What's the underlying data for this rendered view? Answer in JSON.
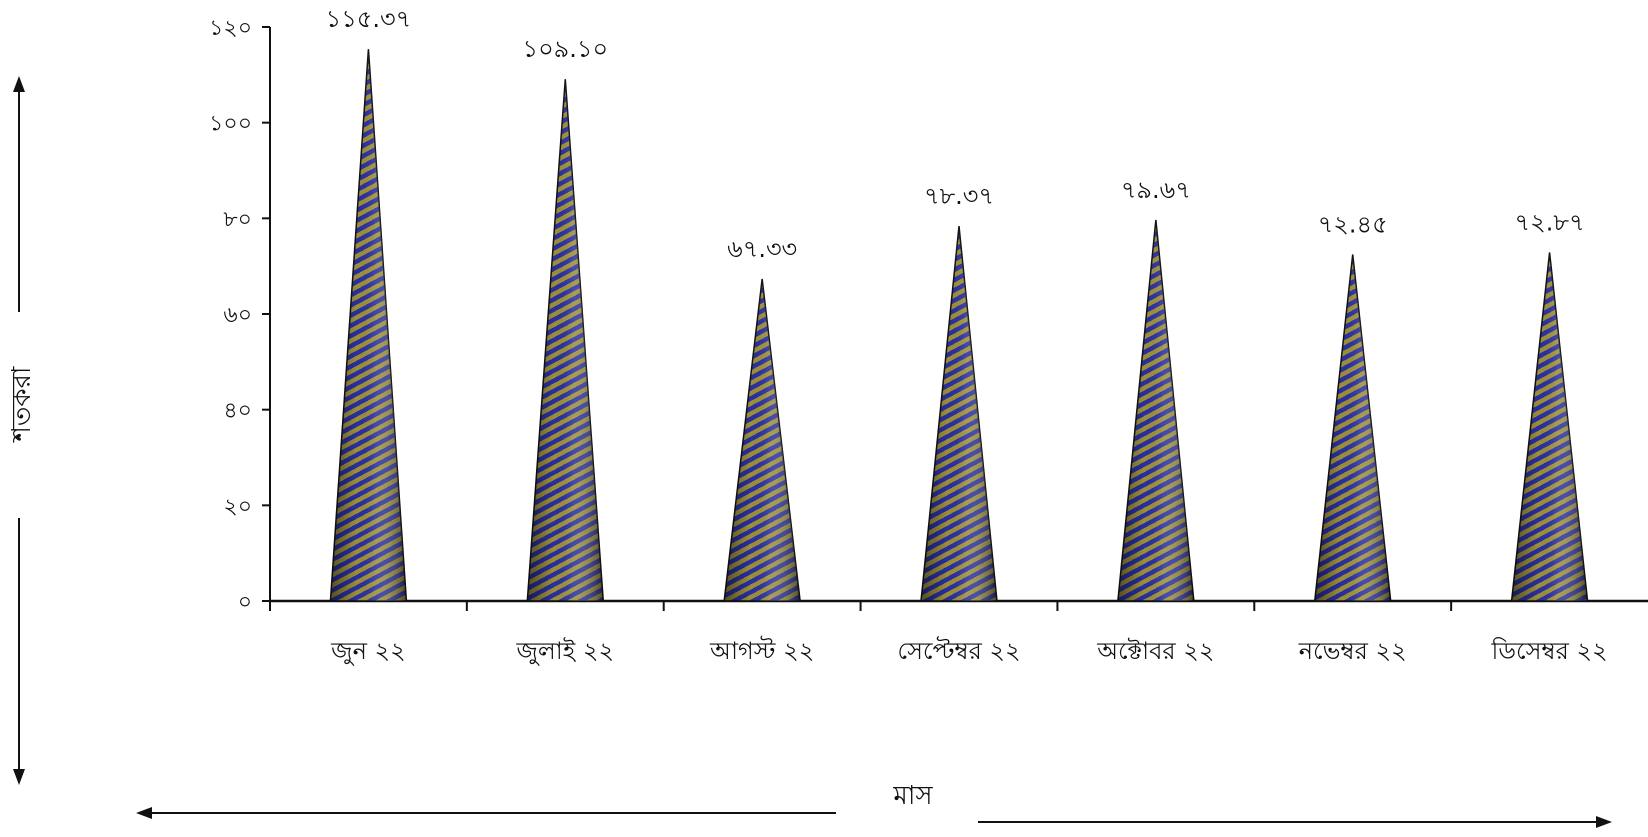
{
  "chart_data": {
    "type": "bar",
    "bar_shape": "cone",
    "title": "",
    "xlabel": "মাস",
    "ylabel": "শতকরা",
    "categories": [
      "জুন ২২",
      "জুলাই ২২",
      "আগস্ট ২২",
      "সেপ্টেম্বর ২২",
      "অক্টোবর ২২",
      "নভেম্বর ২২",
      "ডিসেম্বর ২২"
    ],
    "values": [
      115.37,
      109.1,
      67.33,
      78.37,
      79.67,
      72.45,
      72.87
    ],
    "value_labels": [
      "১১৫.৩৭",
      "১০৯.১০",
      "৬৭.৩৩",
      "৭৮.৩৭",
      "৭৯.৬৭",
      "৭২.৪৫",
      "৭২.৮৭"
    ],
    "ylim": [
      0,
      120
    ],
    "yticks": [
      0,
      20,
      40,
      60,
      80,
      100,
      120
    ],
    "ytick_labels": [
      "০",
      "২০",
      "৪০",
      "৬০",
      "৮০",
      "১০০",
      "১২০"
    ],
    "grid": false,
    "legend": "none",
    "colors": {
      "fill_a": "#2a2f9e",
      "fill_b": "#9c8f3a",
      "outline": "#111111"
    }
  }
}
